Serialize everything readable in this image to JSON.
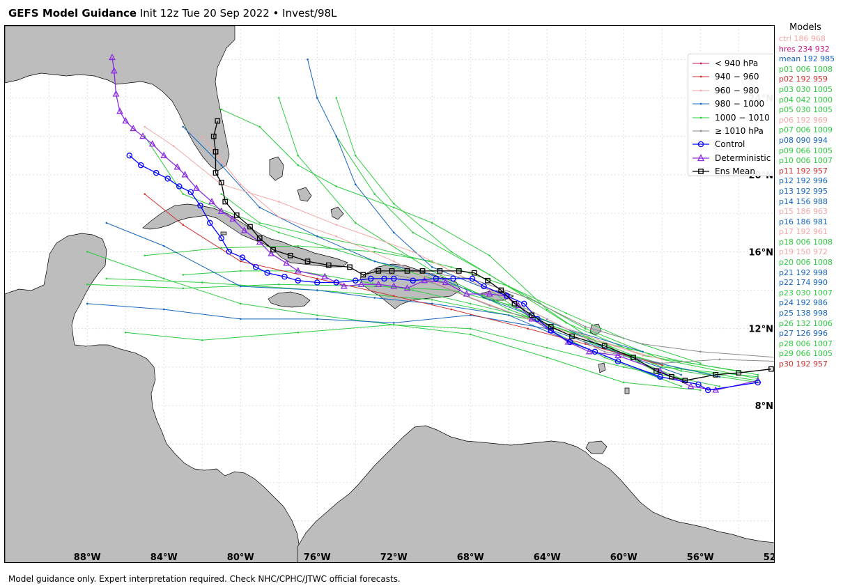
{
  "header": {
    "title_bold": "GEFS Model Guidance",
    "title_rest": " Init 12z Tue 20 Sep 2022 • Invest/98L"
  },
  "map": {
    "lon_ticks": [
      "88°W",
      "84°W",
      "80°W",
      "76°W",
      "72°W",
      "68°W",
      "64°W",
      "60°W",
      "56°W",
      "52°W"
    ],
    "lat_ticks": [
      "24°N",
      "20°N",
      "16°N",
      "12°N",
      "8°N"
    ],
    "land_color": "#bdbdbd"
  },
  "legend": [
    {
      "label": "< 940 hPa",
      "color": "#c2185b",
      "marker": "dot"
    },
    {
      "label": "940 − 960",
      "color": "#d32f2f",
      "marker": "dot"
    },
    {
      "label": "960 − 980",
      "color": "#f4a6a6",
      "marker": "dot"
    },
    {
      "label": "980 − 1000",
      "color": "#1565c0",
      "marker": "dot"
    },
    {
      "label": "1000 − 1010",
      "color": "#2ecc40",
      "marker": "dot"
    },
    {
      "label": "≥ 1010 hPa",
      "color": "#8a8a8a",
      "marker": "dot"
    },
    {
      "label": "Control",
      "color": "#0000ff",
      "marker": "circle"
    },
    {
      "label": "Deterministic",
      "color": "#8a2be2",
      "marker": "triangle"
    },
    {
      "label": "Ens Mean",
      "color": "#000000",
      "marker": "square"
    }
  ],
  "models_title": "Models",
  "models": [
    {
      "text": "ctrl 186 968",
      "color": "#f4a6a6"
    },
    {
      "text": "hres 234 932",
      "color": "#c71585"
    },
    {
      "text": "mean 192 985",
      "color": "#1565c0"
    },
    {
      "text": "p01 006 1008",
      "color": "#2ecc40"
    },
    {
      "text": "p02 192 959",
      "color": "#d32f2f"
    },
    {
      "text": "p03 030 1005",
      "color": "#2ecc40"
    },
    {
      "text": "p04 042 1000",
      "color": "#2ecc40"
    },
    {
      "text": "p05 030 1005",
      "color": "#2ecc40"
    },
    {
      "text": "p06 192 969",
      "color": "#f4a6a6"
    },
    {
      "text": "p07 006 1009",
      "color": "#2ecc40"
    },
    {
      "text": "p08 090 994",
      "color": "#1565c0"
    },
    {
      "text": "p09 066 1005",
      "color": "#2ecc40"
    },
    {
      "text": "p10 006 1007",
      "color": "#2ecc40"
    },
    {
      "text": "p11 192 957",
      "color": "#d32f2f"
    },
    {
      "text": "p12 192 996",
      "color": "#1565c0"
    },
    {
      "text": "p13 192 995",
      "color": "#1565c0"
    },
    {
      "text": "p14 156 988",
      "color": "#1565c0"
    },
    {
      "text": "p15 186 963",
      "color": "#f4a6a6"
    },
    {
      "text": "p16 186 981",
      "color": "#1565c0"
    },
    {
      "text": "p17 192 961",
      "color": "#f4a6a6"
    },
    {
      "text": "p18 006 1008",
      "color": "#2ecc40"
    },
    {
      "text": "p19 150 972",
      "color": "#f4a6a6"
    },
    {
      "text": "p20 006 1008",
      "color": "#2ecc40"
    },
    {
      "text": "p21 192 998",
      "color": "#1565c0"
    },
    {
      "text": "p22 174 990",
      "color": "#1565c0"
    },
    {
      "text": "p23 030 1007",
      "color": "#2ecc40"
    },
    {
      "text": "p24 192 986",
      "color": "#1565c0"
    },
    {
      "text": "p25 138 998",
      "color": "#1565c0"
    },
    {
      "text": "p26 132 1006",
      "color": "#2ecc40"
    },
    {
      "text": "p27 126 996",
      "color": "#1565c0"
    },
    {
      "text": "p28 006 1007",
      "color": "#2ecc40"
    },
    {
      "text": "p29 066 1005",
      "color": "#2ecc40"
    },
    {
      "text": "p30 192 957",
      "color": "#d32f2f"
    }
  ],
  "tracks": {
    "control": [
      [
        53.0,
        9.2
      ],
      [
        55.6,
        8.8
      ],
      [
        56.1,
        9.1
      ],
      [
        58.1,
        9.5
      ],
      [
        60.3,
        10.3
      ],
      [
        61.5,
        10.8
      ],
      [
        62.8,
        11.3
      ],
      [
        63.8,
        11.9
      ],
      [
        64.5,
        12.5
      ],
      [
        65.2,
        13.3
      ],
      [
        66.1,
        13.7
      ],
      [
        67.3,
        14.2
      ],
      [
        67.9,
        14.6
      ],
      [
        68.9,
        14.6
      ],
      [
        69.8,
        14.6
      ],
      [
        71.0,
        14.5
      ],
      [
        72.0,
        14.6
      ],
      [
        72.5,
        14.6
      ],
      [
        73.2,
        14.6
      ],
      [
        74.0,
        14.5
      ],
      [
        75.0,
        14.4
      ],
      [
        76.0,
        14.4
      ],
      [
        77.0,
        14.5
      ],
      [
        77.7,
        14.7
      ],
      [
        78.6,
        14.9
      ],
      [
        79.2,
        15.2
      ],
      [
        79.9,
        15.7
      ],
      [
        80.6,
        16.0
      ],
      [
        81.0,
        16.7
      ],
      [
        81.6,
        17.5
      ],
      [
        82.1,
        18.4
      ],
      [
        82.6,
        19.1
      ],
      [
        83.2,
        19.4
      ],
      [
        83.8,
        19.8
      ],
      [
        84.4,
        20.1
      ],
      [
        85.2,
        20.5
      ],
      [
        85.8,
        21.0
      ]
    ],
    "deterministic": [
      [
        53.0,
        9.3
      ],
      [
        55.2,
        8.8
      ],
      [
        56.5,
        9.0
      ],
      [
        58.1,
        9.8
      ],
      [
        60.3,
        10.6
      ],
      [
        61.8,
        10.8
      ],
      [
        62.9,
        11.3
      ],
      [
        63.8,
        11.9
      ],
      [
        64.8,
        12.5
      ],
      [
        65.5,
        13.2
      ],
      [
        66.1,
        13.7
      ],
      [
        67.0,
        13.8
      ],
      [
        68.2,
        13.8
      ],
      [
        69.3,
        14.4
      ],
      [
        70.4,
        14.5
      ],
      [
        71.3,
        14.1
      ],
      [
        72.0,
        14.2
      ],
      [
        72.8,
        14.3
      ],
      [
        73.7,
        14.3
      ],
      [
        74.6,
        14.2
      ],
      [
        75.6,
        14.7
      ],
      [
        77.0,
        15.0
      ],
      [
        77.6,
        15.4
      ],
      [
        78.4,
        15.9
      ],
      [
        79.0,
        16.5
      ],
      [
        79.8,
        17.1
      ],
      [
        80.4,
        17.7
      ],
      [
        81.0,
        18.1
      ],
      [
        81.5,
        18.6
      ],
      [
        82.3,
        19.3
      ],
      [
        82.9,
        20.0
      ],
      [
        83.3,
        20.4
      ],
      [
        84.0,
        21.0
      ],
      [
        84.6,
        21.6
      ],
      [
        85.1,
        22.0
      ],
      [
        85.6,
        22.4
      ],
      [
        86.0,
        22.8
      ],
      [
        86.3,
        23.3
      ],
      [
        86.5,
        24.2
      ],
      [
        86.6,
        25.4
      ],
      [
        86.7,
        26.1
      ]
    ],
    "mean": [
      [
        52.3,
        9.9
      ],
      [
        54.0,
        9.7
      ],
      [
        55.2,
        9.6
      ],
      [
        56.8,
        9.3
      ],
      [
        57.5,
        9.5
      ],
      [
        58.3,
        9.8
      ],
      [
        59.5,
        10.5
      ],
      [
        61.0,
        11.1
      ],
      [
        62.7,
        11.6
      ],
      [
        63.8,
        12.1
      ],
      [
        64.8,
        12.7
      ],
      [
        65.7,
        13.3
      ],
      [
        66.4,
        14.0
      ],
      [
        67.1,
        14.5
      ],
      [
        67.8,
        14.9
      ],
      [
        68.6,
        15.0
      ],
      [
        69.6,
        15.0
      ],
      [
        70.5,
        15.0
      ],
      [
        71.3,
        15.0
      ],
      [
        72.1,
        15.0
      ],
      [
        72.8,
        15.0
      ],
      [
        73.6,
        14.8
      ],
      [
        74.3,
        15.2
      ],
      [
        75.4,
        15.3
      ],
      [
        76.5,
        15.5
      ],
      [
        77.4,
        15.8
      ],
      [
        78.3,
        16.1
      ],
      [
        79.0,
        16.7
      ],
      [
        79.5,
        17.3
      ],
      [
        80.2,
        17.9
      ],
      [
        80.8,
        18.6
      ],
      [
        81.0,
        19.6
      ],
      [
        81.3,
        20.1
      ],
      [
        81.3,
        21.2
      ],
      [
        81.4,
        22.0
      ],
      [
        81.2,
        22.8
      ]
    ]
  }
}
